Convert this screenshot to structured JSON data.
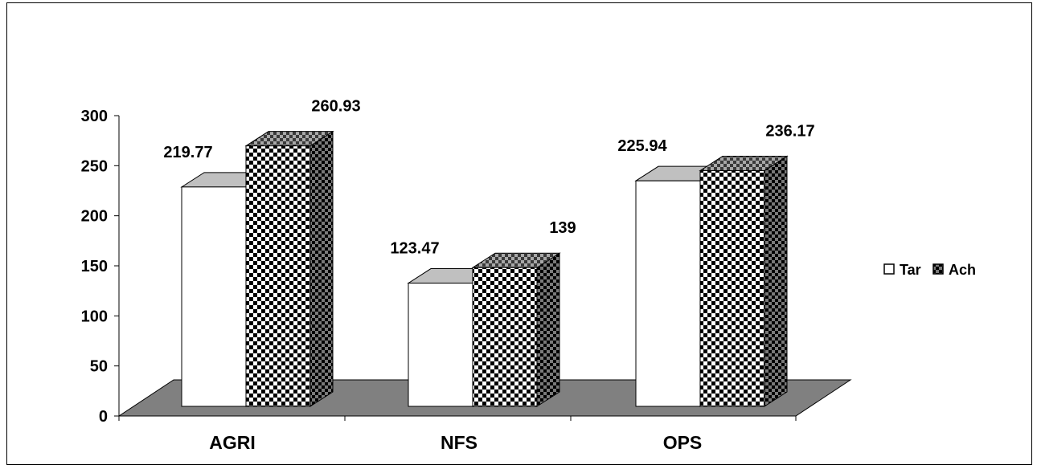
{
  "chart_data": {
    "type": "bar",
    "categories": [
      "AGRI",
      "NFS",
      "OPS"
    ],
    "series": [
      {
        "name": "Tar",
        "values": [
          219.77,
          123.47,
          225.94
        ],
        "fill": "#ffffff"
      },
      {
        "name": "Ach",
        "values": [
          260.93,
          139,
          236.17
        ],
        "fill": "checkerboard"
      }
    ],
    "data_labels": [
      [
        "219.77",
        "123.47",
        "225.94"
      ],
      [
        "260.93",
        "139",
        "236.17"
      ]
    ],
    "y_ticks": [
      "0",
      "50",
      "100",
      "150",
      "200",
      "250",
      "300"
    ],
    "ylim": [
      0,
      300
    ],
    "title": "",
    "xlabel": "",
    "ylabel": "",
    "legend_position": "right",
    "three_d": true,
    "floor_color": "#808080",
    "grid": false
  }
}
